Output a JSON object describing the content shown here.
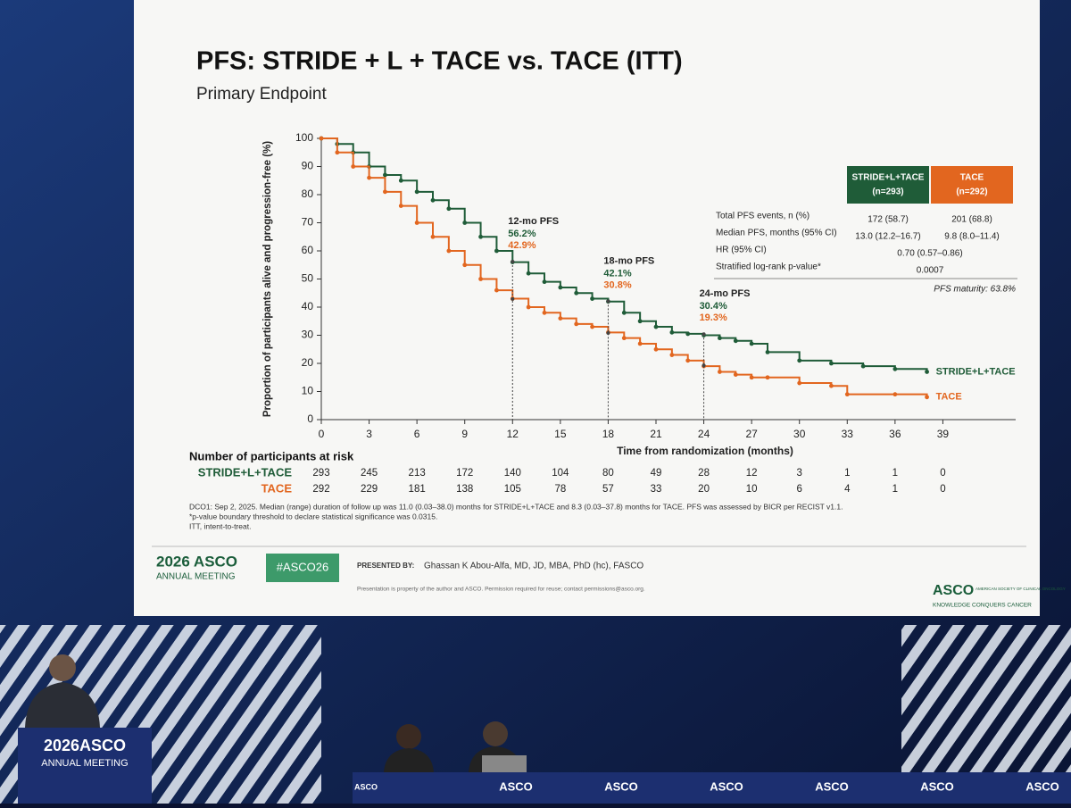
{
  "slide": {
    "title": "PFS: STRIDE + L + TACE vs. TACE (ITT)",
    "subtitle": "Primary Endpoint"
  },
  "chart_data": {
    "type": "line",
    "step": true,
    "x_label": "Time from randomization (months)",
    "y_label": "Proportion of participants alive and progression-free (%)",
    "xlim": [
      0,
      42
    ],
    "ylim": [
      0,
      100
    ],
    "xticks": [
      0,
      3,
      6,
      9,
      12,
      15,
      18,
      21,
      24,
      27,
      30,
      33,
      36,
      39
    ],
    "yticks": [
      0,
      10,
      20,
      30,
      40,
      50,
      60,
      70,
      80,
      90,
      100
    ],
    "series": [
      {
        "name": "STRIDE+L+TACE",
        "color": "#1f5c38",
        "x": [
          0,
          1,
          2,
          3,
          4,
          5,
          6,
          7,
          8,
          9,
          10,
          11,
          12,
          13,
          14,
          15,
          16,
          17,
          18,
          19,
          20,
          21,
          22,
          23,
          24,
          25,
          26,
          27,
          28,
          30,
          32,
          34,
          36,
          38
        ],
        "values": [
          100,
          98,
          95,
          90,
          87,
          85,
          81,
          78,
          75,
          70,
          65,
          60,
          56,
          52,
          49,
          47,
          45,
          43,
          42,
          38,
          35,
          33,
          31,
          30.5,
          30,
          29,
          28,
          27,
          24,
          21,
          20,
          19,
          18,
          17
        ]
      },
      {
        "name": "TACE",
        "color": "#e2661f",
        "x": [
          0,
          1,
          2,
          3,
          4,
          5,
          6,
          7,
          8,
          9,
          10,
          11,
          12,
          13,
          14,
          15,
          16,
          17,
          18,
          19,
          20,
          21,
          22,
          23,
          24,
          25,
          26,
          27,
          28,
          30,
          32,
          33,
          36,
          38
        ],
        "values": [
          100,
          95,
          90,
          86,
          81,
          76,
          70,
          65,
          60,
          55,
          50,
          46,
          43,
          40,
          38,
          36,
          34,
          33,
          31,
          29,
          27,
          25,
          23,
          21,
          19,
          17,
          16,
          15,
          15,
          13,
          12,
          9,
          9,
          8
        ]
      }
    ],
    "annotations": [
      {
        "x": 12,
        "text": "12-mo PFS",
        "values": [
          56.2,
          42.9
        ],
        "value_labels": [
          "56.2%",
          "42.9%"
        ]
      },
      {
        "x": 18,
        "text": "18-mo PFS",
        "values": [
          42.1,
          30.8
        ],
        "value_labels": [
          "42.1%",
          "30.8%"
        ]
      },
      {
        "x": 24,
        "text": "24-mo PFS",
        "values": [
          30.4,
          19.3
        ],
        "value_labels": [
          "30.4%",
          "19.3%"
        ]
      }
    ]
  },
  "stats_table": {
    "headers": [
      "(n=293)",
      "(n=292)"
    ],
    "rows": [
      {
        "label": "Total PFS events, n (%)",
        "cells": [
          "172 (58.7)",
          "201 (68.8)"
        ]
      },
      {
        "label": "Median PFS, months (95% CI)",
        "cells": [
          "13.0 (12.2–16.7)",
          "9.8 (8.0–11.4)"
        ]
      },
      {
        "label": "HR (95% CI)",
        "cells": [
          "0.70 (0.57–0.86)"
        ]
      },
      {
        "label": "Stratified log-rank p-value*",
        "cells": [
          "0.0007"
        ]
      }
    ],
    "note": "PFS maturity: 63.8%"
  },
  "at_risk": {
    "title": "Number of participants at risk",
    "rows": [
      [
        293,
        245,
        213,
        172,
        140,
        104,
        80,
        49,
        28,
        12,
        3,
        1,
        1,
        0
      ],
      [
        292,
        229,
        181,
        138,
        105,
        78,
        57,
        33,
        20,
        10,
        6,
        4,
        1,
        0
      ]
    ]
  },
  "footnotes": [
    "DCO1: Sep 2, 2025. Median (range) duration of follow up was 11.0 (0.03–38.0) months for STRIDE+L+TACE and 8.3 (0.03–37.8) months for TACE. PFS was assessed by BICR per RECIST v1.1.",
    "*p-value boundary threshold to declare statistical significance was 0.0315.",
    "ITT, intent-to-treat."
  ],
  "footer": {
    "logo": "2026 ASCO",
    "logo_sub": "ANNUAL MEETING",
    "hashtag": "#ASCO26",
    "presented_label": "PRESENTED BY:",
    "presenter": "Ghassan K Abou-Alfa, MD, JD, MBA, PhD (hc), FASCO",
    "notice": "Presentation is property of the author and ASCO. Permission required for reuse; contact permissions@asco.org.",
    "org": "ASCO",
    "org_tag": "AMERICAN SOCIETY OF CLINICAL ONCOLOGY",
    "motto": "KNOWLEDGE CONQUERS CANCER"
  },
  "stage": {
    "podium": [
      "2026ASCO",
      "ANNUAL MEETING"
    ],
    "table_labels": [
      "ASCO",
      "ASCO",
      "ASCO",
      "ASCO",
      "ASCO",
      "ASCO",
      "ASCO"
    ]
  }
}
